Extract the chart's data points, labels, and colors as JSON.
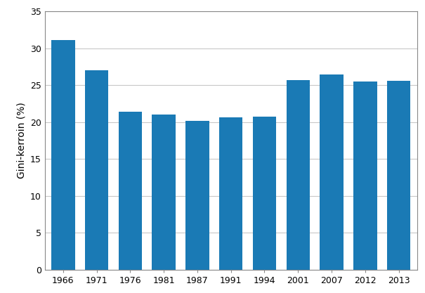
{
  "categories": [
    "1966",
    "1971",
    "1976",
    "1981",
    "1987",
    "1991",
    "1994",
    "2001",
    "2007",
    "2012",
    "2013"
  ],
  "values": [
    31.1,
    27.0,
    21.4,
    21.0,
    20.2,
    20.6,
    20.7,
    25.7,
    26.4,
    25.5,
    25.6
  ],
  "bar_color": "#1a7ab5",
  "ylabel": "Gini-kerroin (%)",
  "ylim": [
    0,
    35
  ],
  "yticks": [
    0,
    5,
    10,
    15,
    20,
    25,
    30,
    35
  ],
  "background_color": "#ffffff",
  "grid_color": "#c8c8c8",
  "bar_width": 0.7,
  "spine_color": "#888888",
  "tick_fontsize": 9,
  "ylabel_fontsize": 10
}
